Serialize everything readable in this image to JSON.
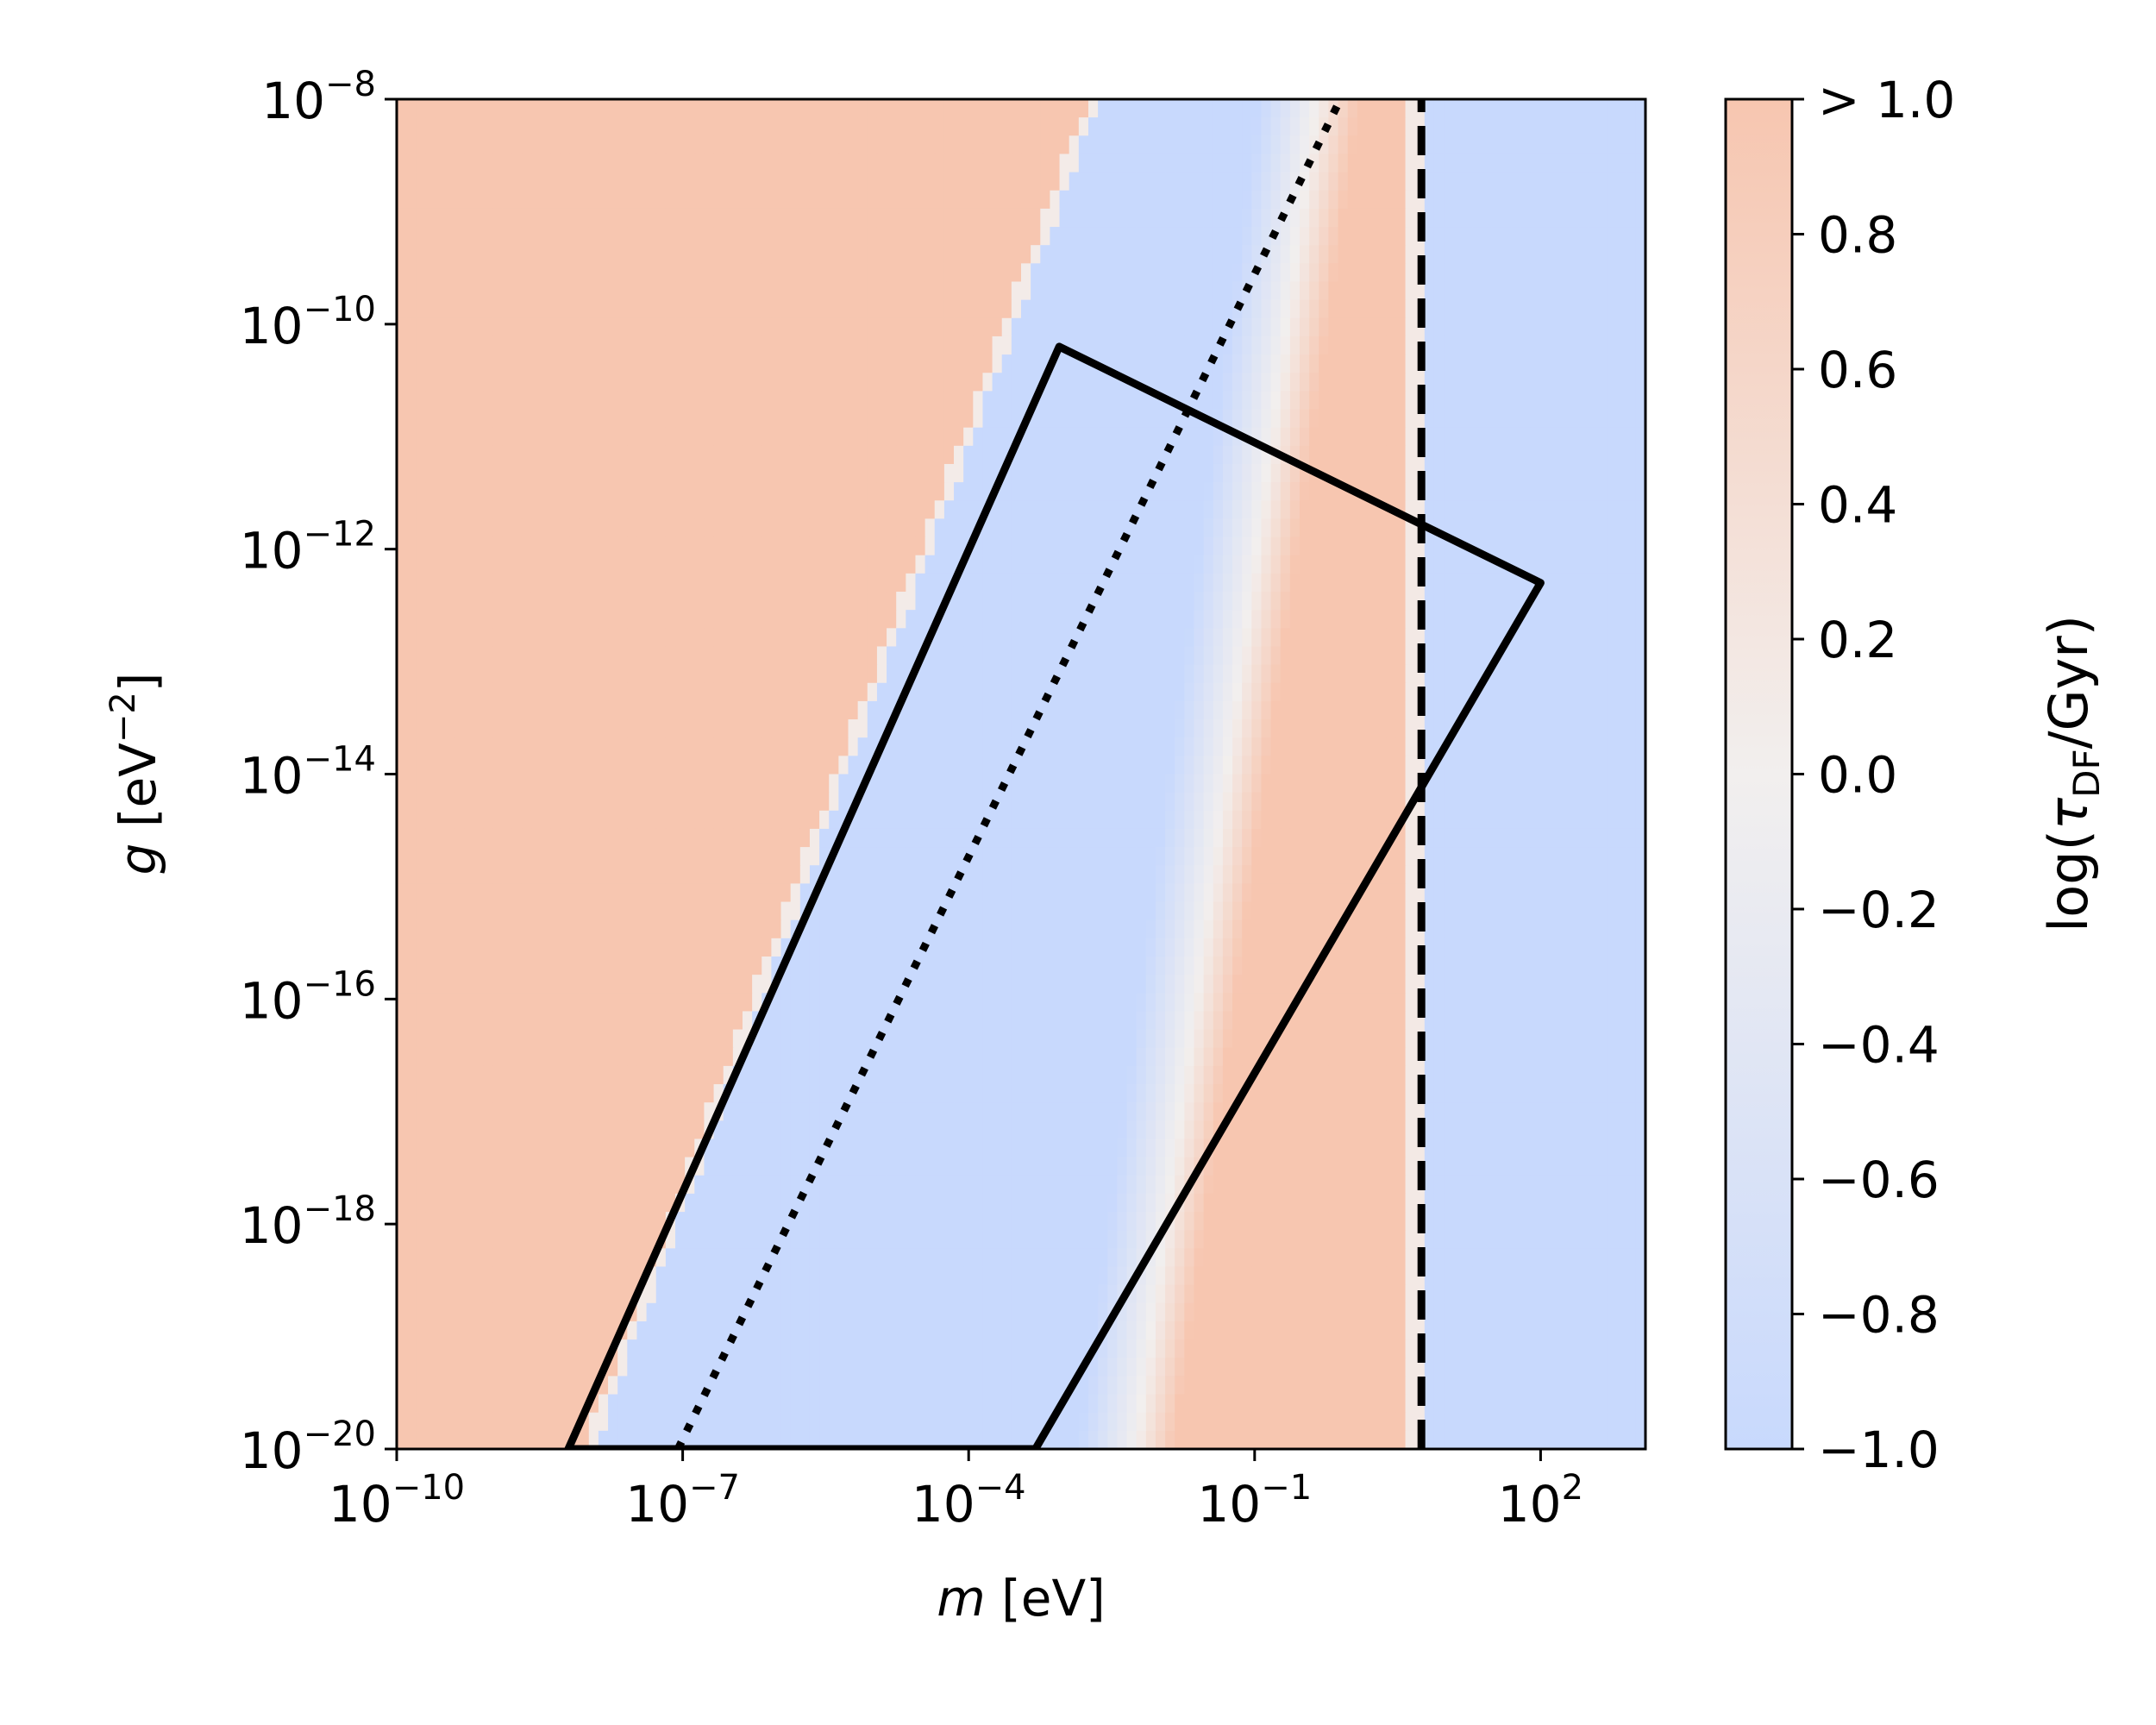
{
  "chart_data": {
    "type": "heatmap",
    "xlabel_var": "m",
    "xlabel_unit": "[eV]",
    "ylabel_var": "g",
    "ylabel_unit_base": "[eV",
    "ylabel_unit_exp": "−2",
    "ylabel_unit_close": "]",
    "xscale": "log",
    "yscale": "log",
    "xlim_log10": [
      -10,
      3.1
    ],
    "ylim_log10": [
      -20,
      -8
    ],
    "x_ticks": [
      {
        "log10": -10,
        "base": "10",
        "exp": "−10"
      },
      {
        "log10": -7,
        "base": "10",
        "exp": "−7"
      },
      {
        "log10": -4,
        "base": "10",
        "exp": "−4"
      },
      {
        "log10": -1,
        "base": "10",
        "exp": "−1"
      },
      {
        "log10": 2,
        "base": "10",
        "exp": "2"
      }
    ],
    "y_ticks": [
      {
        "log10": -8,
        "base": "10",
        "exp": "−8"
      },
      {
        "log10": -10,
        "base": "10",
        "exp": "−10"
      },
      {
        "log10": -12,
        "base": "10",
        "exp": "−12"
      },
      {
        "log10": -14,
        "base": "10",
        "exp": "−14"
      },
      {
        "log10": -16,
        "base": "10",
        "exp": "−16"
      },
      {
        "log10": -18,
        "base": "10",
        "exp": "−18"
      },
      {
        "log10": -20,
        "base": "10",
        "exp": "−20"
      }
    ],
    "colorbar": {
      "label_prefix": "log(",
      "label_symbol": "τ",
      "label_sub": "DF",
      "label_suffix": "/Gyr)",
      "vmin": -1.0,
      "vmax": 1.0,
      "ticks": [
        {
          "value": 1.0,
          "label": "> 1.0"
        },
        {
          "value": 0.8,
          "label": "0.8"
        },
        {
          "value": 0.6,
          "label": "0.6"
        },
        {
          "value": 0.4,
          "label": "0.4"
        },
        {
          "value": 0.2,
          "label": "0.2"
        },
        {
          "value": 0.0,
          "label": "0.0"
        },
        {
          "value": -0.2,
          "label": "−0.2"
        },
        {
          "value": -0.4,
          "label": "−0.4"
        },
        {
          "value": -0.6,
          "label": "−0.6"
        },
        {
          "value": -0.8,
          "label": "−0.8"
        },
        {
          "value": -1.0,
          "label": "−1.0"
        }
      ],
      "colors": {
        "low": "#c8d9fd",
        "mid": "#f2efee",
        "high": "#f7c6b0"
      }
    },
    "heatmap_regions": [
      {
        "name": "left saturated region",
        "value": 1.0,
        "boundary_log10m": [
          [
            -8.05,
            -20
          ],
          [
            -2.75,
            -8
          ]
        ]
      },
      {
        "name": "white band",
        "value": 0.0,
        "boundary_log10m": [
          [
            -2.25,
            -20
          ],
          [
            -0.35,
            -8
          ]
        ]
      },
      {
        "name": "right saturated region",
        "value": 1.0,
        "boundary_log10m": [
          [
            -1.85,
            -20
          ],
          [
            0.1,
            -8
          ]
        ]
      },
      {
        "name": "right low region",
        "value": -1.0,
        "log10m_min": 0.82
      }
    ],
    "overlays": [
      {
        "style": "solid",
        "closed": true,
        "points_log10": [
          [
            -8.2,
            -20
          ],
          [
            -3.05,
            -10.2
          ],
          [
            2.0,
            -12.3
          ],
          [
            -3.3,
            -20
          ]
        ]
      },
      {
        "style": "dotted",
        "points_log10": [
          [
            -7.05,
            -20
          ],
          [
            -0.1,
            -8
          ]
        ]
      },
      {
        "style": "dashed",
        "points_log10": [
          [
            0.75,
            -20
          ],
          [
            0.75,
            -8
          ]
        ]
      }
    ]
  }
}
